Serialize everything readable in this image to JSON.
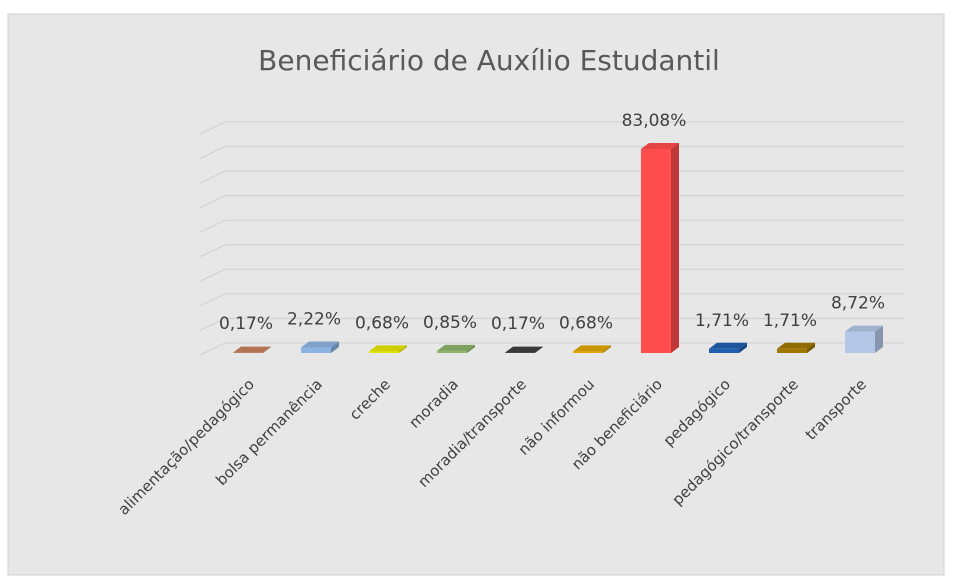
{
  "chart_data": {
    "type": "bar3d",
    "title": "Beneficiário de Auxílio Estudantil",
    "categories": [
      "alimentação/pedagógico",
      "bolsa permanência",
      "creche",
      "moradia",
      "moradia/transporte",
      "não informou",
      "não beneficiário",
      "pedagógico",
      "pedagógico/transporte",
      "transporte"
    ],
    "values": [
      0.17,
      2.22,
      0.68,
      0.85,
      0.17,
      0.68,
      83.08,
      1.71,
      1.71,
      8.72
    ],
    "value_labels": [
      "0,17%",
      "2,22%",
      "0,68%",
      "0,85%",
      "0,17%",
      "0,68%",
      "83,08%",
      "1,71%",
      "1,71%",
      "8,72%"
    ],
    "colors": [
      "#c9825e",
      "#8cb4e2",
      "#e6e600",
      "#8fb56a",
      "#404040",
      "#e0a800",
      "#ff4d4d",
      "#1f5fb0",
      "#a07800",
      "#b4c7e7"
    ],
    "ylim": [
      0,
      90
    ],
    "yticks": [
      0,
      10,
      20,
      30,
      40,
      50,
      60,
      70,
      80,
      90
    ],
    "grid": true
  }
}
